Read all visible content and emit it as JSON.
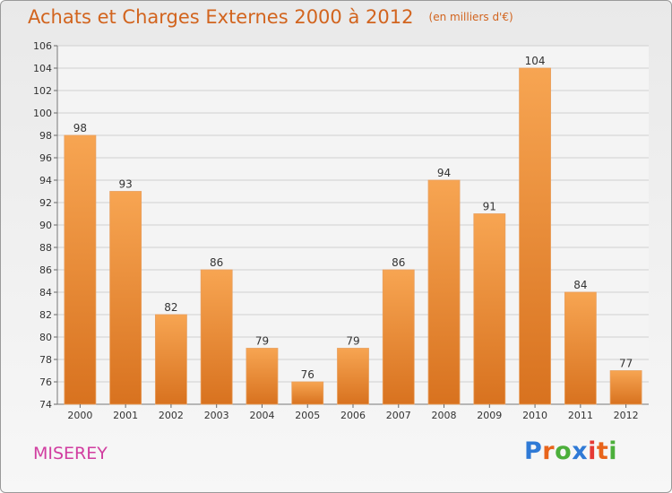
{
  "header": {
    "title": "Achats et Charges Externes 2000 à 2012",
    "unit": "(en milliers d'€)"
  },
  "footer": {
    "commune": "MISEREY",
    "brand": "Proxiti",
    "brand_colors": [
      "#2f7ad6",
      "#e8641b",
      "#4caf3b",
      "#2f7ad6",
      "#e53935",
      "#e8641b",
      "#4caf3b"
    ]
  },
  "colors": {
    "bar_top": "#f7a552",
    "bar_bottom": "#d8721f",
    "grid": "#cfcfcf",
    "accent": "#d2641e"
  },
  "chart_data": {
    "type": "bar",
    "title": "Achats et Charges Externes 2000 à 2012",
    "categories": [
      "2000",
      "2001",
      "2002",
      "2003",
      "2004",
      "2005",
      "2006",
      "2007",
      "2008",
      "2009",
      "2010",
      "2011",
      "2012"
    ],
    "values": [
      98,
      93,
      82,
      86,
      79,
      76,
      79,
      86,
      94,
      91,
      104,
      84,
      77
    ],
    "ylim": [
      74,
      106
    ],
    "yticks": [
      74,
      76,
      78,
      80,
      82,
      84,
      86,
      88,
      90,
      92,
      94,
      96,
      98,
      100,
      102,
      104,
      106
    ],
    "grid": true,
    "xlabel": "",
    "ylabel": ""
  }
}
